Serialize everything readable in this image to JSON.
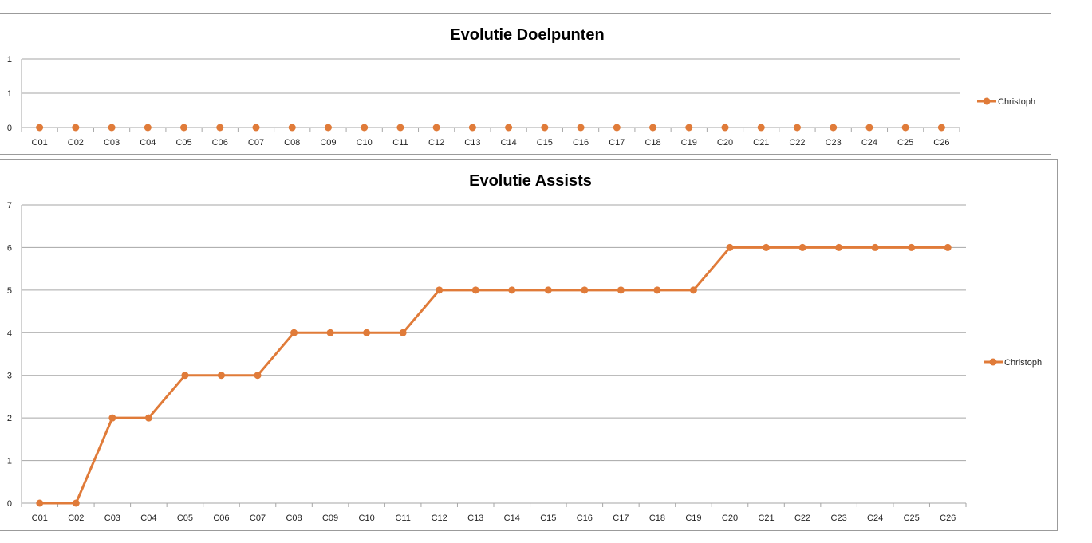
{
  "chart_data": [
    {
      "type": "line",
      "title": "Evolutie Doelpunten",
      "xlabel": "",
      "ylabel": "",
      "categories": [
        "C01",
        "C02",
        "C03",
        "C04",
        "C05",
        "C06",
        "C07",
        "C08",
        "C09",
        "C10",
        "C11",
        "C12",
        "C13",
        "C14",
        "C15",
        "C16",
        "C17",
        "C18",
        "C19",
        "C20",
        "C21",
        "C22",
        "C23",
        "C24",
        "C25",
        "C26"
      ],
      "y_ticks": [
        "0",
        "1",
        "1"
      ],
      "ylim": [
        0,
        1
      ],
      "grid": true,
      "legend_position": "right",
      "series": [
        {
          "name": "Christoph",
          "color": "#E07B39",
          "show_line": false,
          "values": [
            0,
            0,
            0,
            0,
            0,
            0,
            0,
            0,
            0,
            0,
            0,
            0,
            0,
            0,
            0,
            0,
            0,
            0,
            0,
            0,
            0,
            0,
            0,
            0,
            0,
            0
          ]
        }
      ]
    },
    {
      "type": "line",
      "title": "Evolutie Assists",
      "xlabel": "",
      "ylabel": "",
      "categories": [
        "C01",
        "C02",
        "C03",
        "C04",
        "C05",
        "C06",
        "C07",
        "C08",
        "C09",
        "C10",
        "C11",
        "C12",
        "C13",
        "C14",
        "C15",
        "C16",
        "C17",
        "C18",
        "C19",
        "C20",
        "C21",
        "C22",
        "C23",
        "C24",
        "C25",
        "C26"
      ],
      "y_ticks": [
        "0",
        "1",
        "2",
        "3",
        "4",
        "5",
        "6",
        "7"
      ],
      "ylim": [
        0,
        7
      ],
      "grid": true,
      "legend_position": "right",
      "series": [
        {
          "name": "Christoph",
          "color": "#E07B39",
          "show_line": true,
          "values": [
            0,
            0,
            2,
            2,
            3,
            3,
            3,
            4,
            4,
            4,
            4,
            5,
            5,
            5,
            5,
            5,
            5,
            5,
            5,
            6,
            6,
            6,
            6,
            6,
            6,
            6
          ]
        }
      ]
    }
  ]
}
